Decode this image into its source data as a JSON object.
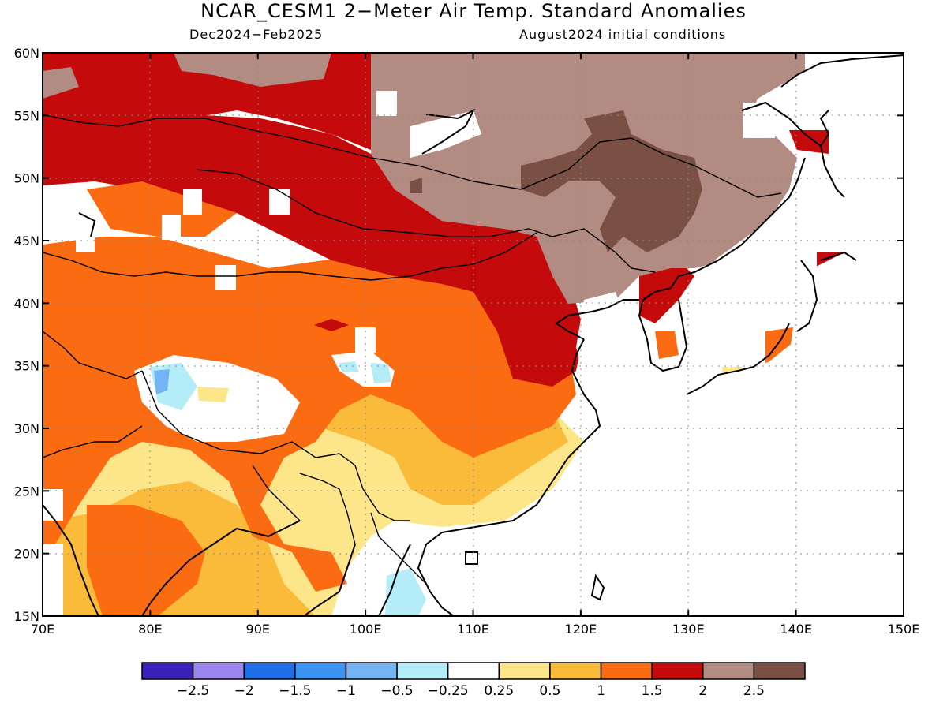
{
  "header": {
    "title": "NCAR_CESM1 2−Meter Air Temp. Standard Anomalies",
    "period": "Dec2024−Feb2025",
    "init": "August2024 initial conditions"
  },
  "map": {
    "lon_range": [
      70,
      150
    ],
    "lat_range": [
      15,
      60
    ],
    "lon_ticks": [
      "70E",
      "80E",
      "90E",
      "100E",
      "110E",
      "120E",
      "130E",
      "140E",
      "150E"
    ],
    "lat_ticks": [
      "60N",
      "55N",
      "50N",
      "45N",
      "40N",
      "35N",
      "30N",
      "25N",
      "20N",
      "15N"
    ],
    "grid": true
  },
  "colorbar": {
    "colors": [
      "#3a1fb8",
      "#9b86f0",
      "#1f6ee6",
      "#3c94f2",
      "#74b4f4",
      "#b4ecf8",
      "#ffffff",
      "#fde68a",
      "#fbbb3a",
      "#fb6b12",
      "#c40a0a",
      "#b28b82",
      "#7a5045"
    ],
    "labels": [
      "−2.5",
      "−2",
      "−1.5",
      "−1",
      "−0.5",
      "−0.25",
      "0.25",
      "0.5",
      "1",
      "1.5",
      "2",
      "2.5"
    ]
  }
}
